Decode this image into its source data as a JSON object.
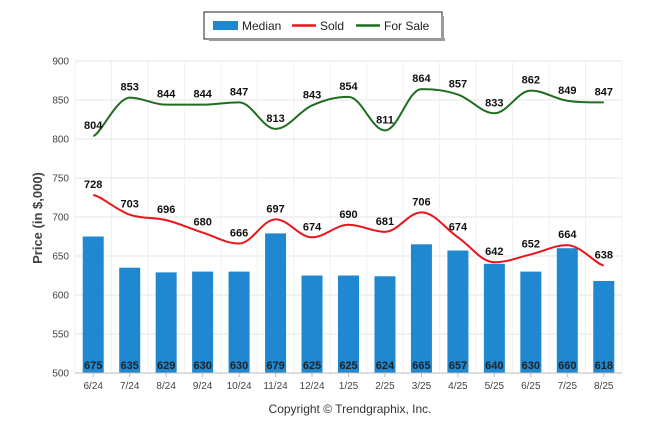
{
  "chart_data": {
    "type": "bar",
    "categories": [
      "6/24",
      "7/24",
      "8/24",
      "9/24",
      "10/24",
      "11/24",
      "12/24",
      "1/25",
      "2/25",
      "3/25",
      "4/25",
      "5/25",
      "6/25",
      "7/25",
      "8/25"
    ],
    "series": [
      {
        "name": "Median",
        "type": "bar",
        "color": "#1f88d0",
        "values": [
          675,
          635,
          629,
          630,
          630,
          679,
          625,
          625,
          624,
          665,
          657,
          640,
          630,
          660,
          618
        ]
      },
      {
        "name": "Sold",
        "type": "line",
        "color": "#e8161b",
        "values": [
          728,
          703,
          696,
          680,
          666,
          697,
          674,
          690,
          681,
          706,
          674,
          642,
          652,
          664,
          638
        ]
      },
      {
        "name": "For Sale",
        "type": "line",
        "color": "#1f6e1f",
        "values": [
          804,
          853,
          844,
          844,
          847,
          813,
          843,
          854,
          811,
          864,
          857,
          833,
          862,
          849,
          847
        ]
      }
    ],
    "ylabel": "Price (in $,000)",
    "ylim": [
      500,
      900
    ],
    "yticks": [
      500,
      550,
      600,
      650,
      700,
      750,
      800,
      850,
      900
    ],
    "grid": true,
    "legend_position": "top-center"
  },
  "footer": {
    "copyright": "Copyright © Trendgraphix, Inc."
  }
}
